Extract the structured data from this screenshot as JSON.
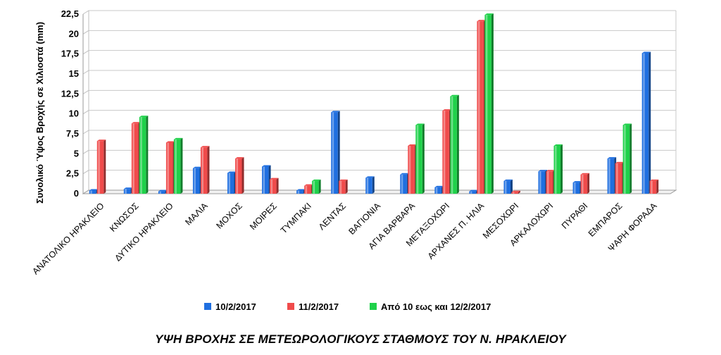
{
  "chart_data": {
    "type": "bar",
    "title": "ΥΨΗ ΒΡΟΧΗΣ ΣΕ ΜΕΤΕΩΡΟΛΟΓΙΚΟΥΣ ΣΤΑΘΜΟΥΣ ΤΟΥ Ν. ΗΡΑΚΛΕΙΟΥ",
    "ylabel": "Συνολικό Ύψος Βροχής σε Χιλιοστά (mm)",
    "xlabel": "",
    "ylim": [
      0,
      22.5
    ],
    "yticks": [
      "0",
      "2,5",
      "5",
      "7,5",
      "10",
      "12,5",
      "15",
      "17,5",
      "20",
      "22,5"
    ],
    "grid": true,
    "legend_position": "bottom",
    "categories": [
      "ΑΝΑΤΟΛΙΚΟ ΗΡΑΚΛΕΙΟ",
      "ΚΝΩΣΟΣ",
      "ΔΥΤΙΚΟ ΗΡΑΚΛΕΙΟ",
      "ΜΑΛΙΑ",
      "ΜΟΧΟΣ",
      "ΜΟΙΡΕΣ",
      "ΤΥΜΠΑΚΙ",
      "ΛΕΝΤΑΣ",
      "ΒΑΓΙΟΝΙΑ",
      "ΑΓΙΑ ΒΑΡΒΑΡΑ",
      "ΜΕΤΑΞΟΧΩΡΙ",
      "ΑΡΧΑΝΕΣ Π. ΗΛΙΑ",
      "ΜΕΣΟΧΩΡΙ",
      "ΑΡΚΑΛΟΧΩΡΙ",
      "ΠΥΡΑΘΙ",
      "ΕΜΠΑΡΟΣ",
      "ΨΑΡΗ ΦΟΡΑΔΑ"
    ],
    "series": [
      {
        "name": "10/2/2017",
        "color": "#1f6fe0",
        "values": [
          0.4,
          0.6,
          0.3,
          3.2,
          2.6,
          3.4,
          0.4,
          10.2,
          2.0,
          2.4,
          0.8,
          0.3,
          1.6,
          2.8,
          1.4,
          4.4,
          17.6
        ]
      },
      {
        "name": "11/2/2017",
        "color": "#f04b4b",
        "values": [
          6.6,
          8.8,
          6.4,
          5.8,
          4.4,
          1.8,
          1.0,
          1.6,
          0,
          6.0,
          10.4,
          21.6,
          0.2,
          2.8,
          2.4,
          3.8,
          1.6
        ]
      },
      {
        "name": "Από 10 εως και 12/2/2017",
        "color": "#1fd14a",
        "values": [
          0,
          9.6,
          6.8,
          0,
          0,
          0,
          1.6,
          0,
          0,
          8.6,
          12.2,
          22.4,
          0,
          6.0,
          0,
          8.6,
          0
        ]
      }
    ]
  }
}
